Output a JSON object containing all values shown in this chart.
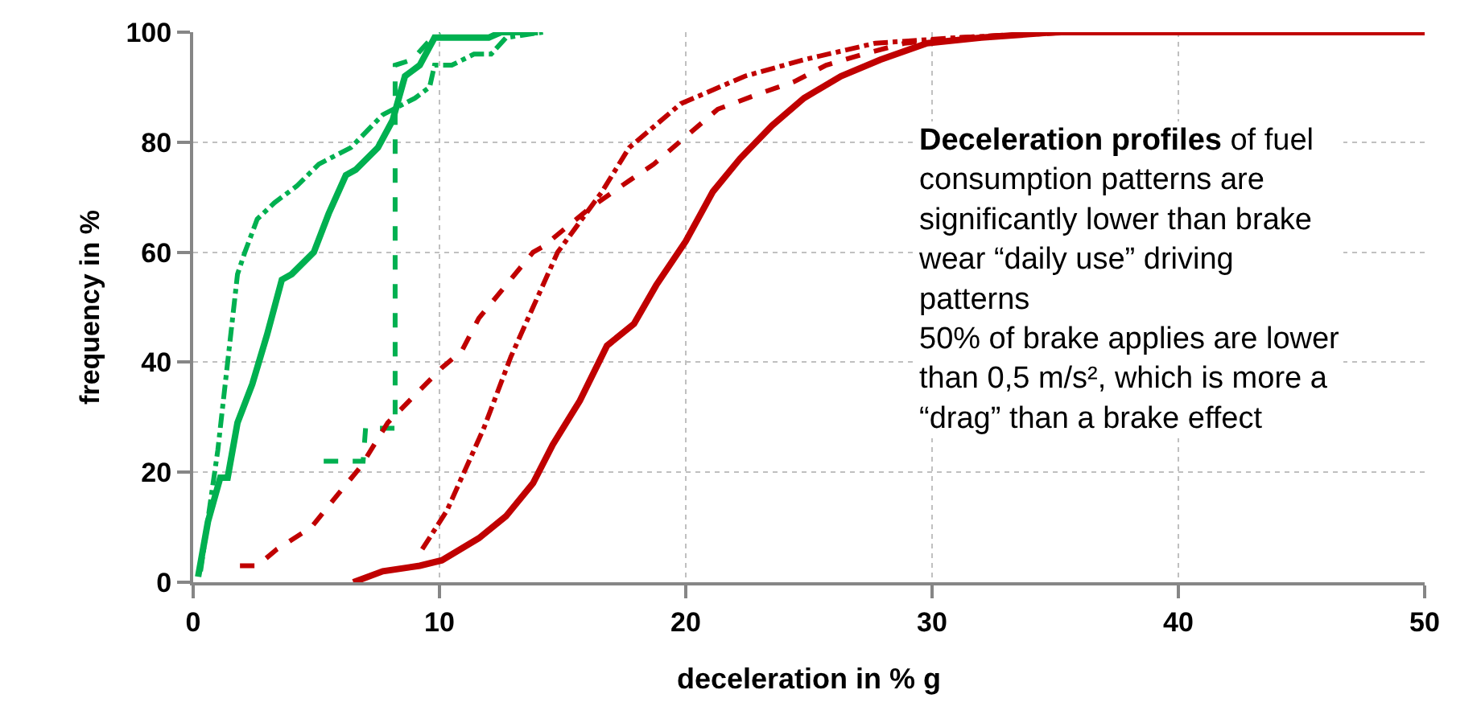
{
  "chart_data": {
    "type": "line",
    "xlabel": "deceleration in % g",
    "ylabel": "frequency in %",
    "xlim": [
      0,
      50
    ],
    "xticks": [
      0,
      10,
      20,
      30,
      40,
      50
    ],
    "ylim": [
      0,
      100
    ],
    "yticks": [
      0,
      20,
      40,
      60,
      80,
      100
    ],
    "grid": true,
    "marker": "none",
    "annotations": [
      "Deceleration profiles",
      "of fuel consumption patterns are significantly lower than brake wear “daily use” driving patterns",
      "50% of brake applies are lower than 0,5 m/s², which is more a “drag” than a brake effect"
    ],
    "series": [
      {
        "color": "#00b050",
        "line_style": "solid",
        "x": [
          0.2,
          0.6,
          1.1,
          1.4,
          1.8,
          2.4,
          3.0,
          3.6,
          4.0,
          4.9,
          5.5,
          6.2,
          6.6,
          7.5,
          8.1,
          8.6,
          9.2,
          9.8,
          12,
          12.5,
          14
        ],
        "values": [
          1,
          11,
          19,
          19,
          29,
          36,
          45,
          55,
          56,
          60,
          67,
          74,
          75,
          79,
          84,
          92,
          94,
          99,
          99,
          100,
          100
        ]
      },
      {
        "color": "#00b050",
        "line_style": "dashdot",
        "x": [
          0.3,
          1.0,
          1.3,
          1.8,
          2.1,
          2.6,
          3.3,
          4.2,
          5.1,
          6.4,
          7.7,
          9.0,
          9.6,
          9.8,
          10.5,
          11.4,
          12.1,
          12.7,
          14.2
        ],
        "values": [
          2,
          24,
          36,
          56,
          60,
          66,
          69,
          72,
          76,
          79,
          85,
          88,
          90,
          94,
          94,
          96,
          96,
          99,
          100
        ]
      },
      {
        "color": "#00b050",
        "line_style": "dashed",
        "x": [
          5.3,
          6.9,
          7.0,
          8.2,
          8.2,
          8.9,
          9.5,
          10.0
        ],
        "values": [
          22,
          22,
          28,
          28,
          94,
          95,
          98,
          100
        ]
      },
      {
        "color": "#c00000",
        "line_style": "solid",
        "x": [
          6.5,
          7.7,
          9.2,
          10.1,
          11.6,
          12.7,
          13.8,
          14.6,
          15.7,
          16.8,
          17.9,
          18.8,
          20.0,
          21.1,
          22.2,
          23.5,
          24.8,
          26.3,
          27.9,
          29.8,
          32,
          35,
          50
        ],
        "values": [
          0,
          2,
          3,
          4,
          8,
          12,
          18,
          25,
          33,
          43,
          47,
          54,
          62,
          71,
          77,
          83,
          88,
          92,
          95,
          98,
          99,
          100,
          100
        ]
      },
      {
        "color": "#c00000",
        "line_style": "dashdot",
        "x": [
          9.3,
          10.3,
          11.8,
          12.9,
          13.5,
          14.8,
          16.6,
          17.7,
          19.8,
          22.4,
          24.8,
          27.7,
          31,
          36,
          50
        ],
        "values": [
          6,
          13,
          28,
          41,
          47,
          60,
          71,
          79,
          87,
          92,
          95,
          98,
          99,
          100,
          100
        ]
      },
      {
        "color": "#c00000",
        "line_style": "dashed",
        "x": [
          1.9,
          2.6,
          3.4,
          4.8,
          5.7,
          6.8,
          7.9,
          9.0,
          10.1,
          10.9,
          11.6,
          12.7,
          13.8,
          14.2,
          16.1,
          17.7,
          18.7,
          20.0,
          21.3,
          23.1,
          24.4,
          25.7,
          27.2,
          28.9,
          31,
          35,
          50
        ],
        "values": [
          3,
          3,
          6,
          10,
          15,
          21,
          29,
          34,
          39,
          42,
          48,
          54,
          60,
          61,
          68,
          73,
          76,
          81,
          86,
          89,
          91,
          94,
          96,
          98,
          99,
          100,
          100
        ]
      }
    ]
  }
}
